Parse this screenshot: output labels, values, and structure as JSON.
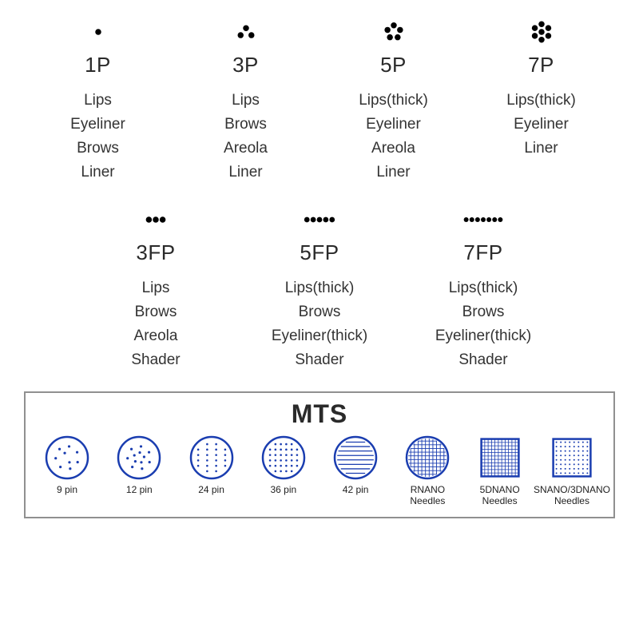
{
  "colors": {
    "dot": "#000000",
    "text": "#2a2a2a",
    "mts_stroke": "#1a3db0",
    "mts_border": "#909090",
    "background": "#ffffff"
  },
  "typography": {
    "label_fontsize": 26,
    "use_fontsize": 19,
    "mts_title_fontsize": 32,
    "mts_label_fontsize": 12
  },
  "needles_row1": [
    {
      "label": "1P",
      "pattern": "single",
      "dot_count": 1,
      "dot_radius": 5,
      "uses": [
        "Lips",
        "Eyeliner",
        "Brows",
        "Liner"
      ]
    },
    {
      "label": "3P",
      "pattern": "triangle",
      "dot_count": 3,
      "dot_radius": 5,
      "uses": [
        "Lips",
        "Brows",
        "Areola",
        "Liner"
      ]
    },
    {
      "label": "5P",
      "pattern": "pentagon",
      "dot_count": 5,
      "dot_radius": 5,
      "uses": [
        "Lips(thick)",
        "Eyeliner",
        "Areola",
        "Liner"
      ]
    },
    {
      "label": "7P",
      "pattern": "hex-center",
      "dot_count": 7,
      "dot_radius": 5,
      "uses": [
        "Lips(thick)",
        "Eyeliner",
        "Liner"
      ]
    }
  ],
  "needles_row2": [
    {
      "label": "3FP",
      "pattern": "flat",
      "dot_count": 3,
      "dot_radius": 5,
      "uses": [
        "Lips",
        "Brows",
        "Areola",
        "Shader"
      ]
    },
    {
      "label": "5FP",
      "pattern": "flat",
      "dot_count": 5,
      "dot_radius": 4.5,
      "uses": [
        "Lips(thick)",
        "Brows",
        "Eyeliner(thick)",
        "Shader"
      ]
    },
    {
      "label": "7FP",
      "pattern": "flat",
      "dot_count": 7,
      "dot_radius": 4,
      "uses": [
        "Lips(thick)",
        "Brows",
        "Eyeliner(thick)",
        "Shader"
      ]
    }
  ],
  "mts": {
    "title": "MTS",
    "items": [
      {
        "label": "9 pin",
        "type": "circle-dots",
        "dots": 9
      },
      {
        "label": "12 pin",
        "type": "circle-dots",
        "dots": 12
      },
      {
        "label": "24 pin",
        "type": "circle-grid",
        "cols": 4,
        "rows": 6
      },
      {
        "label": "36 pin",
        "type": "circle-grid",
        "cols": 6,
        "rows": 6
      },
      {
        "label": "42 pin",
        "type": "circle-lines",
        "lines": 8
      },
      {
        "label": "RNANO\nNeedles",
        "type": "circle-mesh"
      },
      {
        "label": "5DNANO\nNeedles",
        "type": "square-mesh"
      },
      {
        "label": "SNANO/3DNANO\nNeedles",
        "type": "square-dots"
      }
    ],
    "circle_radius": 26,
    "stroke_width": 2.5,
    "icon_size": 60
  }
}
